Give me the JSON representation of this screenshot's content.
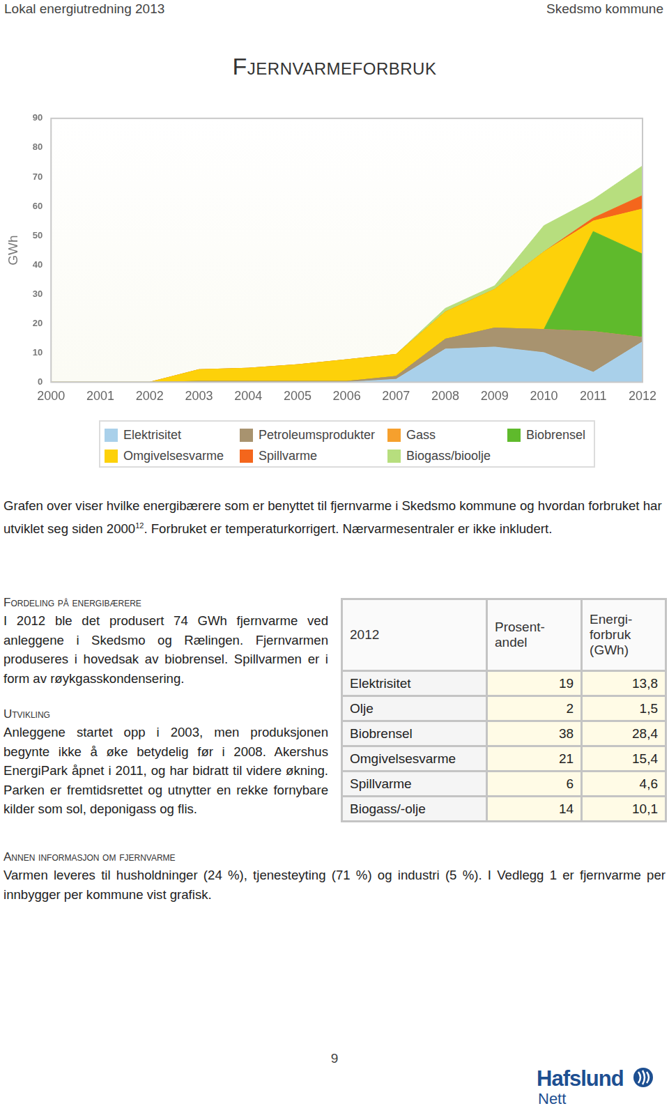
{
  "header": {
    "left": "Lokal energiutredning 2013",
    "right": "Skedsmo kommune"
  },
  "title": "Fjernvarmeforbruk",
  "chart_data": {
    "type": "area",
    "stacked": true,
    "y_label": "GWh",
    "categories": [
      "2000",
      "2001",
      "2002",
      "2003",
      "2004",
      "2005",
      "2006",
      "2007",
      "2008",
      "2009",
      "2010",
      "2011",
      "2012"
    ],
    "series": [
      {
        "name": "Elektrisitet",
        "color": "#a9d0ea",
        "values": [
          0,
          0,
          0,
          0,
          0,
          0,
          0,
          1.0,
          11.3,
          12.0,
          10.1,
          3.4,
          13.8
        ]
      },
      {
        "name": "Petroleumsprodukter",
        "color": "#a8936f",
        "values": [
          0,
          0,
          0,
          0.3,
          0.3,
          0.3,
          0.3,
          1.0,
          3.4,
          6.5,
          7.9,
          13.9,
          1.5
        ]
      },
      {
        "name": "Gass",
        "color": "#f6a02d",
        "values": [
          0,
          0,
          0,
          0,
          0,
          0,
          0,
          0,
          0,
          0,
          0,
          0,
          0
        ]
      },
      {
        "name": "Biobrensel",
        "color": "#5fba2c",
        "values": [
          0,
          0,
          0,
          0,
          0,
          0,
          0,
          0,
          0,
          0,
          0,
          34.1,
          28.4
        ]
      },
      {
        "name": "Omgivelsesvarme",
        "color": "#fdd10a",
        "values": [
          0,
          0,
          0,
          4.0,
          4.5,
          5.7,
          7.4,
          7.5,
          9.3,
          13.2,
          26.5,
          3.6,
          15.4
        ]
      },
      {
        "name": "Spillvarme",
        "color": "#f4661c",
        "values": [
          0,
          0,
          0,
          0,
          0,
          0,
          0,
          0,
          0,
          0,
          0,
          1.0,
          4.6
        ]
      },
      {
        "name": "Biogass/bioolje",
        "color": "#b7de7e",
        "values": [
          0,
          0,
          0,
          0,
          0,
          0,
          0,
          0,
          1.2,
          1.2,
          8.9,
          6.3,
          10.1
        ]
      }
    ],
    "ylim": [
      0,
      90
    ],
    "yticks": [
      0,
      10,
      20,
      30,
      40,
      50,
      60,
      70,
      80,
      90
    ],
    "grid": false,
    "legend": "bottom"
  },
  "intro": {
    "text_before": "Grafen over viser hvilke energibærere som er benyttet til fjernvarme i Skedsmo kommune og hvordan forbruket har utviklet seg siden 2000",
    "footnote": "12",
    "text_after": ". Forbruket er temperaturkorrigert. Nærvarmesentraler er ikke inkludert."
  },
  "sections": [
    {
      "heading": "Fordeling på energibærere",
      "text": "I 2012 ble det produsert 74 GWh fjernvarme ved anleggene i Skedsmo og Rælingen. Fjernvarmen produseres i hovedsak av biobrensel. Spillvarmen er i form av røykgasskondensering."
    },
    {
      "heading": "Utvikling",
      "text": "Anleggene startet opp i 2003, men produksjonen begynte ikke å øke betydelig før i 2008. Akershus EnergiPark åpnet i 2011, og har bidratt til videre økning. Parken er fremtidsrettet og utnytter en rekke fornybare kilder som sol, deponigass og flis."
    }
  ],
  "table": {
    "header": [
      [
        "2012"
      ],
      [
        "Prosent-",
        "andel"
      ],
      [
        "Energi-",
        "forbruk",
        "(GWh)"
      ]
    ],
    "rows": [
      [
        "Elektrisitet",
        "19",
        "13,8"
      ],
      [
        "Olje",
        "2",
        "1,5"
      ],
      [
        "Biobrensel",
        "38",
        "28,4"
      ],
      [
        "Omgivelsesvarme",
        "21",
        "15,4"
      ],
      [
        "Spillvarme",
        "6",
        "4,6"
      ],
      [
        "Biogass/-olje",
        "14",
        "10,1"
      ]
    ]
  },
  "other": {
    "heading": "Annen informasjon om fjernvarme",
    "text": "Varmen leveres til husholdninger (24 %), tjenesteyting (71 %) og industri (5 %). I Vedlegg 1 er fjernvarme per innbygger per kommune vist grafisk."
  },
  "footer": {
    "page": "9",
    "logo": "Hafslund",
    "logo_sub": "Nett"
  }
}
